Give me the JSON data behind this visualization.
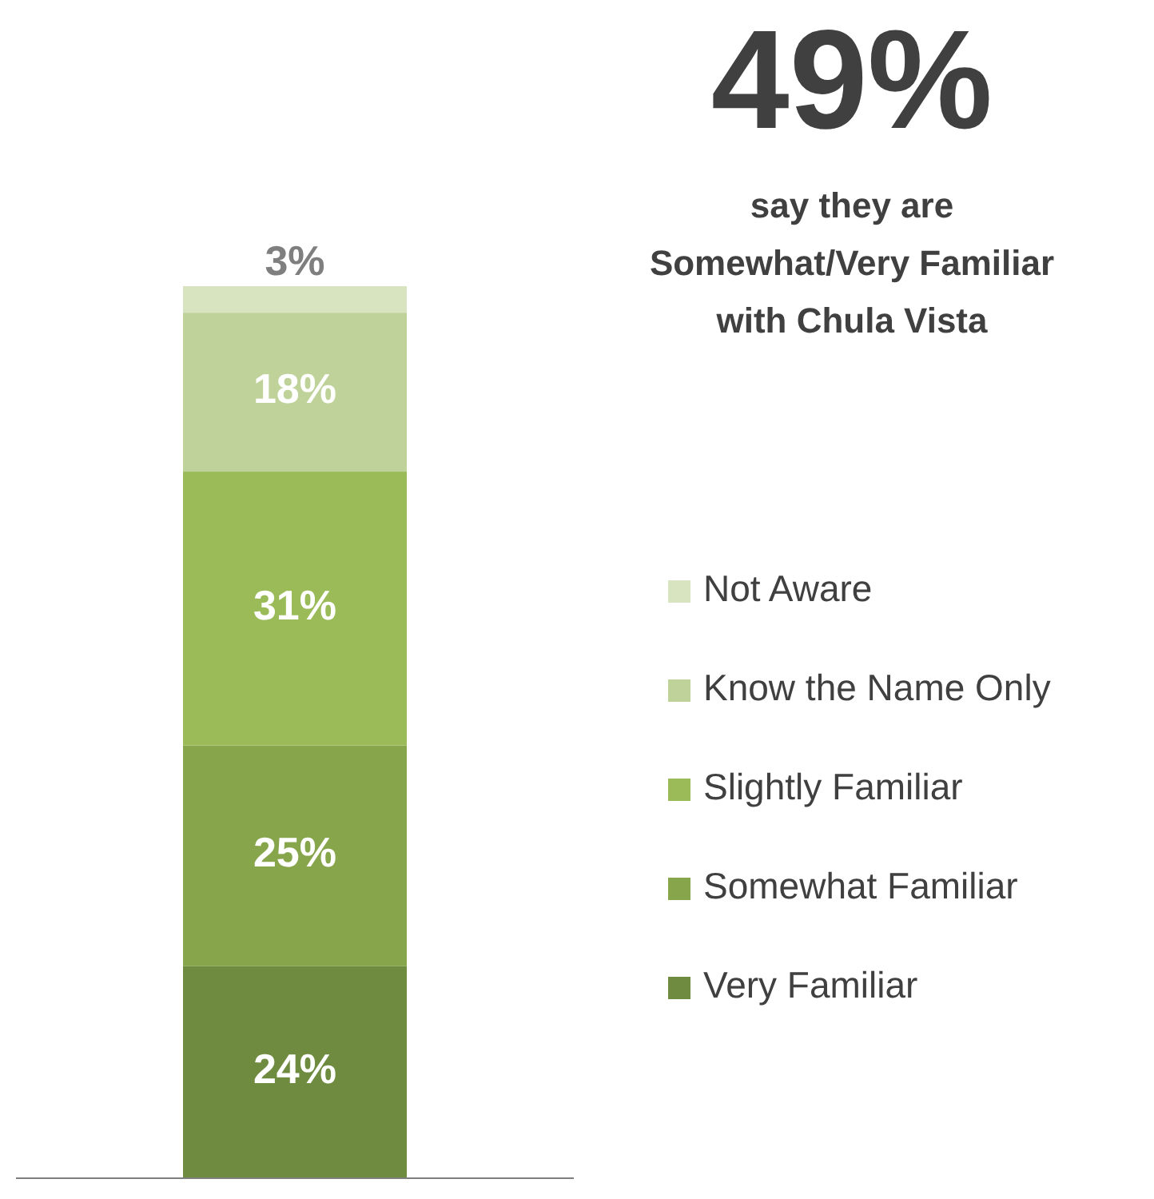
{
  "chart_data": {
    "type": "bar",
    "stacked": true,
    "title": "49%",
    "subtitle": "say they are\nSomewhat/Very Familiar\nwith Chula Vista",
    "categories": [
      null
    ],
    "legend": "right",
    "series": [
      {
        "name": "Very Familiar",
        "color": "#6f8b3f",
        "values": [
          24
        ],
        "value_labels": [
          "24%"
        ]
      },
      {
        "name": "Somewhat Familiar",
        "color": "#87a64c",
        "values": [
          25
        ],
        "value_labels": [
          "25%"
        ]
      },
      {
        "name": "Slightly Familiar",
        "color": "#9bbb59",
        "values": [
          31
        ],
        "value_labels": [
          "31%"
        ]
      },
      {
        "name": "Know the Name Only",
        "color": "#bfd29a",
        "values": [
          18
        ],
        "value_labels": [
          "18%"
        ]
      },
      {
        "name": "Not Aware",
        "color": "#d8e4bf",
        "values": [
          3
        ],
        "value_labels": [
          "3%"
        ]
      }
    ]
  }
}
